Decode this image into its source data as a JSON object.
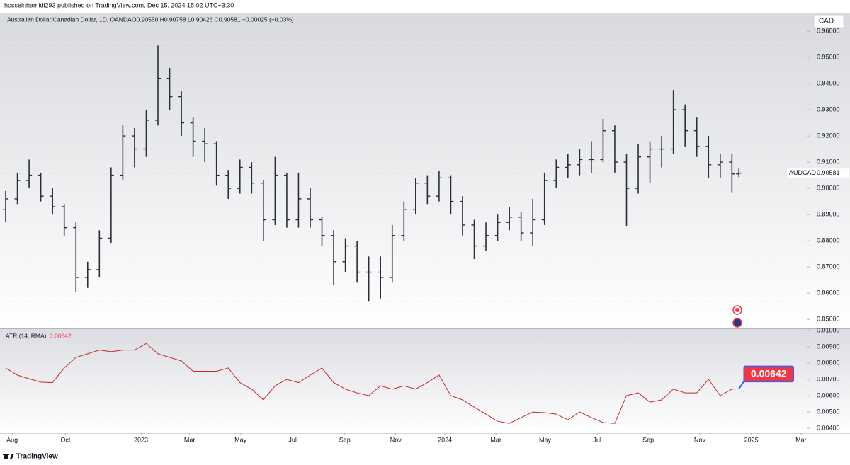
{
  "published": "hosseinhamidi293 published on TradingView.com, Dec 15, 2024 15:02 UTC+3:30",
  "brand": "TradingView",
  "chart_data": [
    {
      "type": "ohlc",
      "symbol": "Australian Dollar/Canadian Dollar, 1D, OANDA",
      "legend_values": "O0.90550 H0.90758 L0.90426 C0.90581 +0.00025 (+0.03%)",
      "ticker": "AUDCAD",
      "currency": "CAD",
      "color": "#2a2e39",
      "last_line_color": "#e57373",
      "hline_color": "#787b86",
      "hlines": [
        0.9547,
        0.8567
      ],
      "x": [
        0,
        2,
        4,
        6,
        8,
        10,
        12,
        14,
        16,
        18,
        20,
        22,
        24,
        26,
        28,
        30,
        32,
        34,
        36,
        38,
        40,
        42,
        44,
        46,
        48,
        50,
        52,
        54,
        56,
        58,
        60,
        62,
        64,
        66,
        68,
        70,
        72,
        74,
        76,
        78,
        80,
        82,
        84,
        86,
        88,
        90,
        92,
        94,
        96,
        98,
        100,
        102,
        104,
        106,
        108,
        110,
        112,
        114,
        116,
        118,
        120,
        122,
        124,
        125.2
      ],
      "open": [
        0.892,
        0.896,
        0.903,
        0.905,
        0.897,
        0.893,
        0.885,
        0.866,
        0.869,
        0.881,
        0.905,
        0.92,
        0.915,
        0.926,
        0.942,
        0.935,
        0.925,
        0.918,
        0.917,
        0.905,
        0.9,
        0.908,
        0.902,
        0.888,
        0.905,
        0.888,
        0.896,
        0.888,
        0.882,
        0.872,
        0.878,
        0.868,
        0.868,
        0.866,
        0.882,
        0.892,
        0.902,
        0.897,
        0.904,
        0.895,
        0.886,
        0.878,
        0.882,
        0.887,
        0.889,
        0.883,
        0.888,
        0.903,
        0.908,
        0.909,
        0.911,
        0.911,
        0.922,
        0.91,
        0.9,
        0.912,
        0.915,
        0.915,
        0.93,
        0.922,
        0.916,
        0.909,
        0.91,
        0.9055
      ],
      "high": [
        0.899,
        0.906,
        0.911,
        0.906,
        0.9,
        0.894,
        0.887,
        0.872,
        0.884,
        0.908,
        0.924,
        0.923,
        0.93,
        0.9545,
        0.946,
        0.937,
        0.927,
        0.923,
        0.918,
        0.907,
        0.911,
        0.91,
        0.903,
        0.912,
        0.906,
        0.906,
        0.9,
        0.889,
        0.884,
        0.881,
        0.88,
        0.874,
        0.874,
        0.886,
        0.895,
        0.904,
        0.905,
        0.9065,
        0.905,
        0.897,
        0.888,
        0.887,
        0.89,
        0.893,
        0.891,
        0.896,
        0.906,
        0.911,
        0.913,
        0.915,
        0.918,
        0.9265,
        0.924,
        0.913,
        0.917,
        0.918,
        0.92,
        0.9375,
        0.932,
        0.927,
        0.92,
        0.913,
        0.913,
        0.90758
      ],
      "low": [
        0.887,
        0.894,
        0.9,
        0.895,
        0.89,
        0.882,
        0.8605,
        0.862,
        0.866,
        0.879,
        0.903,
        0.908,
        0.912,
        0.924,
        0.93,
        0.92,
        0.912,
        0.91,
        0.901,
        0.896,
        0.898,
        0.898,
        0.88,
        0.886,
        0.885,
        0.885,
        0.885,
        0.878,
        0.863,
        0.868,
        0.864,
        0.857,
        0.858,
        0.864,
        0.88,
        0.89,
        0.894,
        0.895,
        0.89,
        0.882,
        0.873,
        0.876,
        0.88,
        0.884,
        0.88,
        0.878,
        0.886,
        0.9,
        0.904,
        0.905,
        0.906,
        0.91,
        0.906,
        0.8855,
        0.898,
        0.902,
        0.908,
        0.913,
        0.916,
        0.912,
        0.904,
        0.904,
        0.8985,
        0.90426
      ],
      "close": [
        0.896,
        0.903,
        0.905,
        0.897,
        0.893,
        0.885,
        0.866,
        0.869,
        0.881,
        0.905,
        0.92,
        0.915,
        0.926,
        0.942,
        0.935,
        0.925,
        0.918,
        0.917,
        0.905,
        0.9,
        0.908,
        0.902,
        0.888,
        0.905,
        0.888,
        0.896,
        0.888,
        0.882,
        0.872,
        0.878,
        0.868,
        0.868,
        0.866,
        0.882,
        0.892,
        0.902,
        0.897,
        0.904,
        0.895,
        0.886,
        0.878,
        0.882,
        0.887,
        0.889,
        0.883,
        0.888,
        0.903,
        0.908,
        0.909,
        0.911,
        0.911,
        0.922,
        0.91,
        0.9,
        0.912,
        0.915,
        0.915,
        0.93,
        0.922,
        0.916,
        0.909,
        0.91,
        0.9055,
        0.90581
      ],
      "xlim": [
        -0.97,
        136.9
      ],
      "ylim": [
        0.8468,
        0.9665
      ],
      "yticks": [
        {
          "value": 0.85,
          "label": "0.85000"
        },
        {
          "value": 0.86,
          "label": "0.86000"
        },
        {
          "value": 0.87,
          "label": "0.87000"
        },
        {
          "value": 0.88,
          "label": "0.88000"
        },
        {
          "value": 0.89,
          "label": "0.89000"
        },
        {
          "value": 0.9,
          "label": "0.90000"
        },
        {
          "value": 0.91,
          "label": "0.91000"
        },
        {
          "value": 0.92,
          "label": "0.92000"
        },
        {
          "value": 0.93,
          "label": "0.93000"
        },
        {
          "value": 0.94,
          "label": "0.94000"
        },
        {
          "value": 0.95,
          "label": "0.95000"
        },
        {
          "value": 0.96,
          "label": "0.96000"
        }
      ],
      "grid": false
    },
    {
      "type": "line",
      "legend": "ATR (14, RMA)",
      "color": "#c62828",
      "label_color": "#f23645",
      "x": [
        0,
        2,
        4,
        6,
        8,
        10,
        12,
        14,
        16,
        18,
        20,
        22,
        24,
        26,
        28,
        30,
        32,
        34,
        36,
        38,
        40,
        42,
        44,
        46,
        48,
        50,
        52,
        54,
        56,
        58,
        60,
        62,
        64,
        66,
        68,
        70,
        72,
        74,
        76,
        78,
        80,
        82,
        84,
        86,
        88,
        90,
        92,
        94,
        96,
        98,
        100,
        102,
        104,
        106,
        108,
        110,
        112,
        114,
        116,
        118,
        120,
        122,
        124,
        125.2
      ],
      "values": [
        0.0077,
        0.00726,
        0.00704,
        0.00683,
        0.0068,
        0.0077,
        0.00835,
        0.00857,
        0.0088,
        0.0087,
        0.0088,
        0.0088,
        0.0092,
        0.00857,
        0.00835,
        0.00813,
        0.0075,
        0.0075,
        0.0075,
        0.0077,
        0.0068,
        0.0064,
        0.00574,
        0.0066,
        0.007,
        0.0068,
        0.00726,
        0.0077,
        0.0068,
        0.0064,
        0.00617,
        0.006,
        0.0066,
        0.0064,
        0.0066,
        0.0064,
        0.0068,
        0.00726,
        0.006,
        0.00574,
        0.0053,
        0.00487,
        0.00443,
        0.0043,
        0.00465,
        0.005,
        0.00496,
        0.00487,
        0.00452,
        0.005,
        0.00465,
        0.00435,
        0.0043,
        0.006,
        0.00617,
        0.0056,
        0.00574,
        0.0064,
        0.00617,
        0.00617,
        0.007,
        0.006,
        0.0064,
        0.00642
      ],
      "xlim": [
        -0.97,
        136.9
      ],
      "ylim": [
        0.0037,
        0.01004
      ],
      "yticks": [
        {
          "value": 0.004,
          "label": "0.00400"
        },
        {
          "value": 0.005,
          "label": "0.00500"
        },
        {
          "value": 0.006,
          "label": "0.00600"
        },
        {
          "value": 0.007,
          "label": "0.00700"
        },
        {
          "value": 0.008,
          "label": "0.00800"
        },
        {
          "value": 0.009,
          "label": "0.00900"
        },
        {
          "value": 0.01,
          "label": "0.01000"
        }
      ],
      "xticks": [
        {
          "value": 1.1,
          "label": "Aug"
        },
        {
          "value": 10.2,
          "label": "Oct"
        },
        {
          "value": 23.1,
          "label": "2023"
        },
        {
          "value": 31.4,
          "label": "Mar"
        },
        {
          "value": 40.1,
          "label": "May"
        },
        {
          "value": 49.0,
          "label": "Jul"
        },
        {
          "value": 57.9,
          "label": "Sep"
        },
        {
          "value": 66.6,
          "label": "Nov"
        },
        {
          "value": 75.0,
          "label": "2024"
        },
        {
          "value": 83.7,
          "label": "Mar"
        },
        {
          "value": 92.1,
          "label": "May"
        },
        {
          "value": 101.0,
          "label": "Jul"
        },
        {
          "value": 109.7,
          "label": "Sep"
        },
        {
          "value": 118.5,
          "label": "Nov"
        },
        {
          "value": 127.3,
          "label": "2025"
        },
        {
          "value": 135.8,
          "label": "Mar"
        }
      ],
      "grid": false
    }
  ]
}
